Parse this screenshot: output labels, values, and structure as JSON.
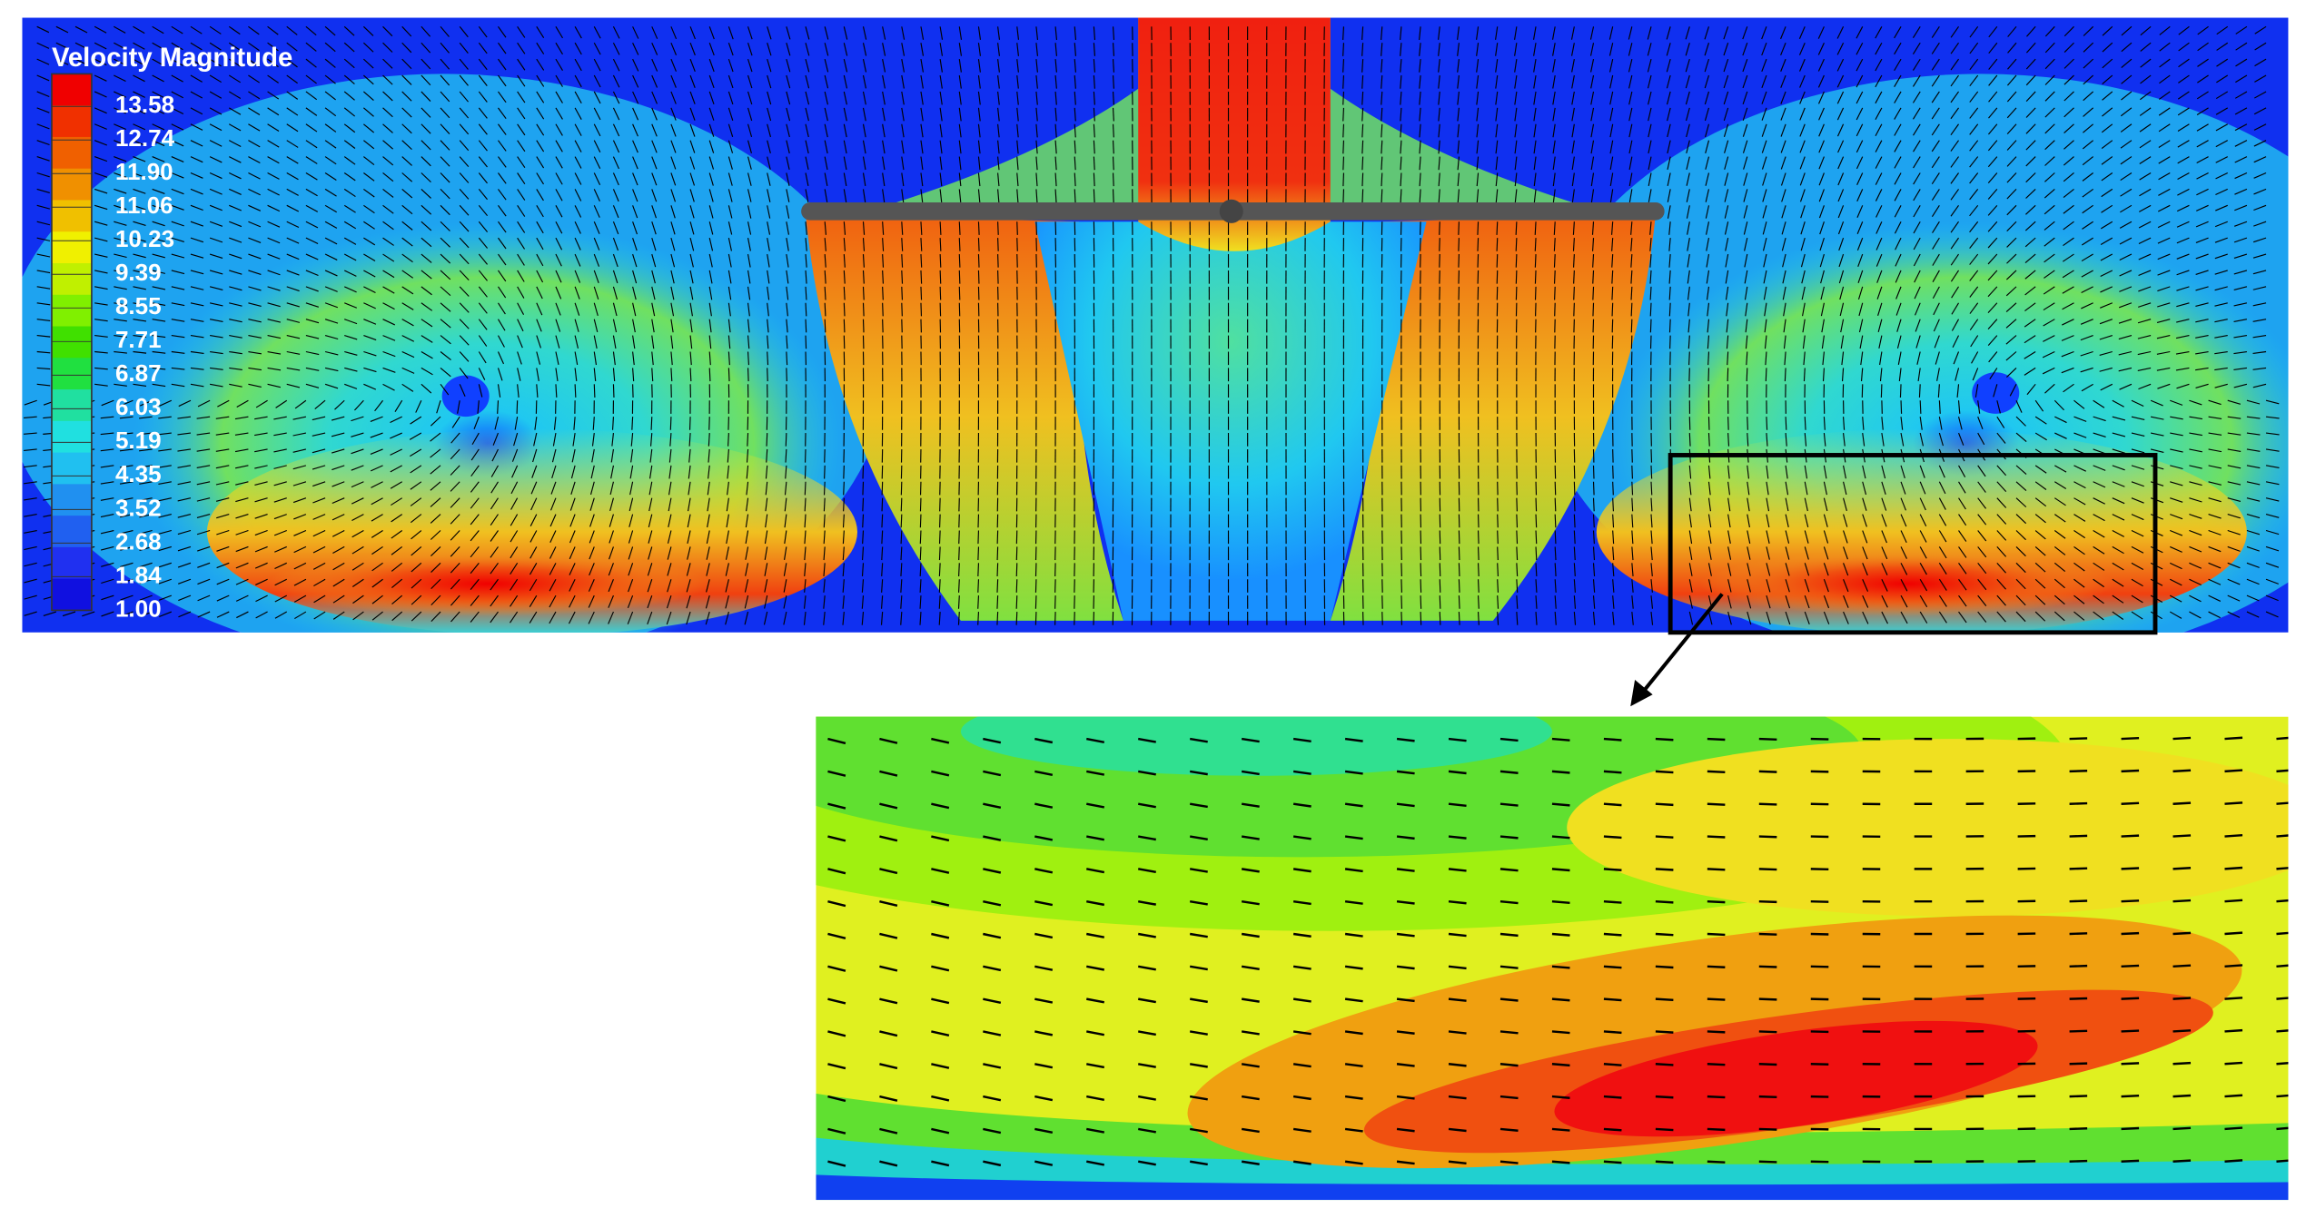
{
  "legend": {
    "title": "Velocity Magnitude",
    "levels": [
      "13.58",
      "12.74",
      "11.90",
      "11.06",
      "10.23",
      "9.39",
      "8.55",
      "7.71",
      "6.87",
      "6.03",
      "5.19",
      "4.35",
      "3.52",
      "2.68",
      "1.84",
      "1.00"
    ]
  }
}
